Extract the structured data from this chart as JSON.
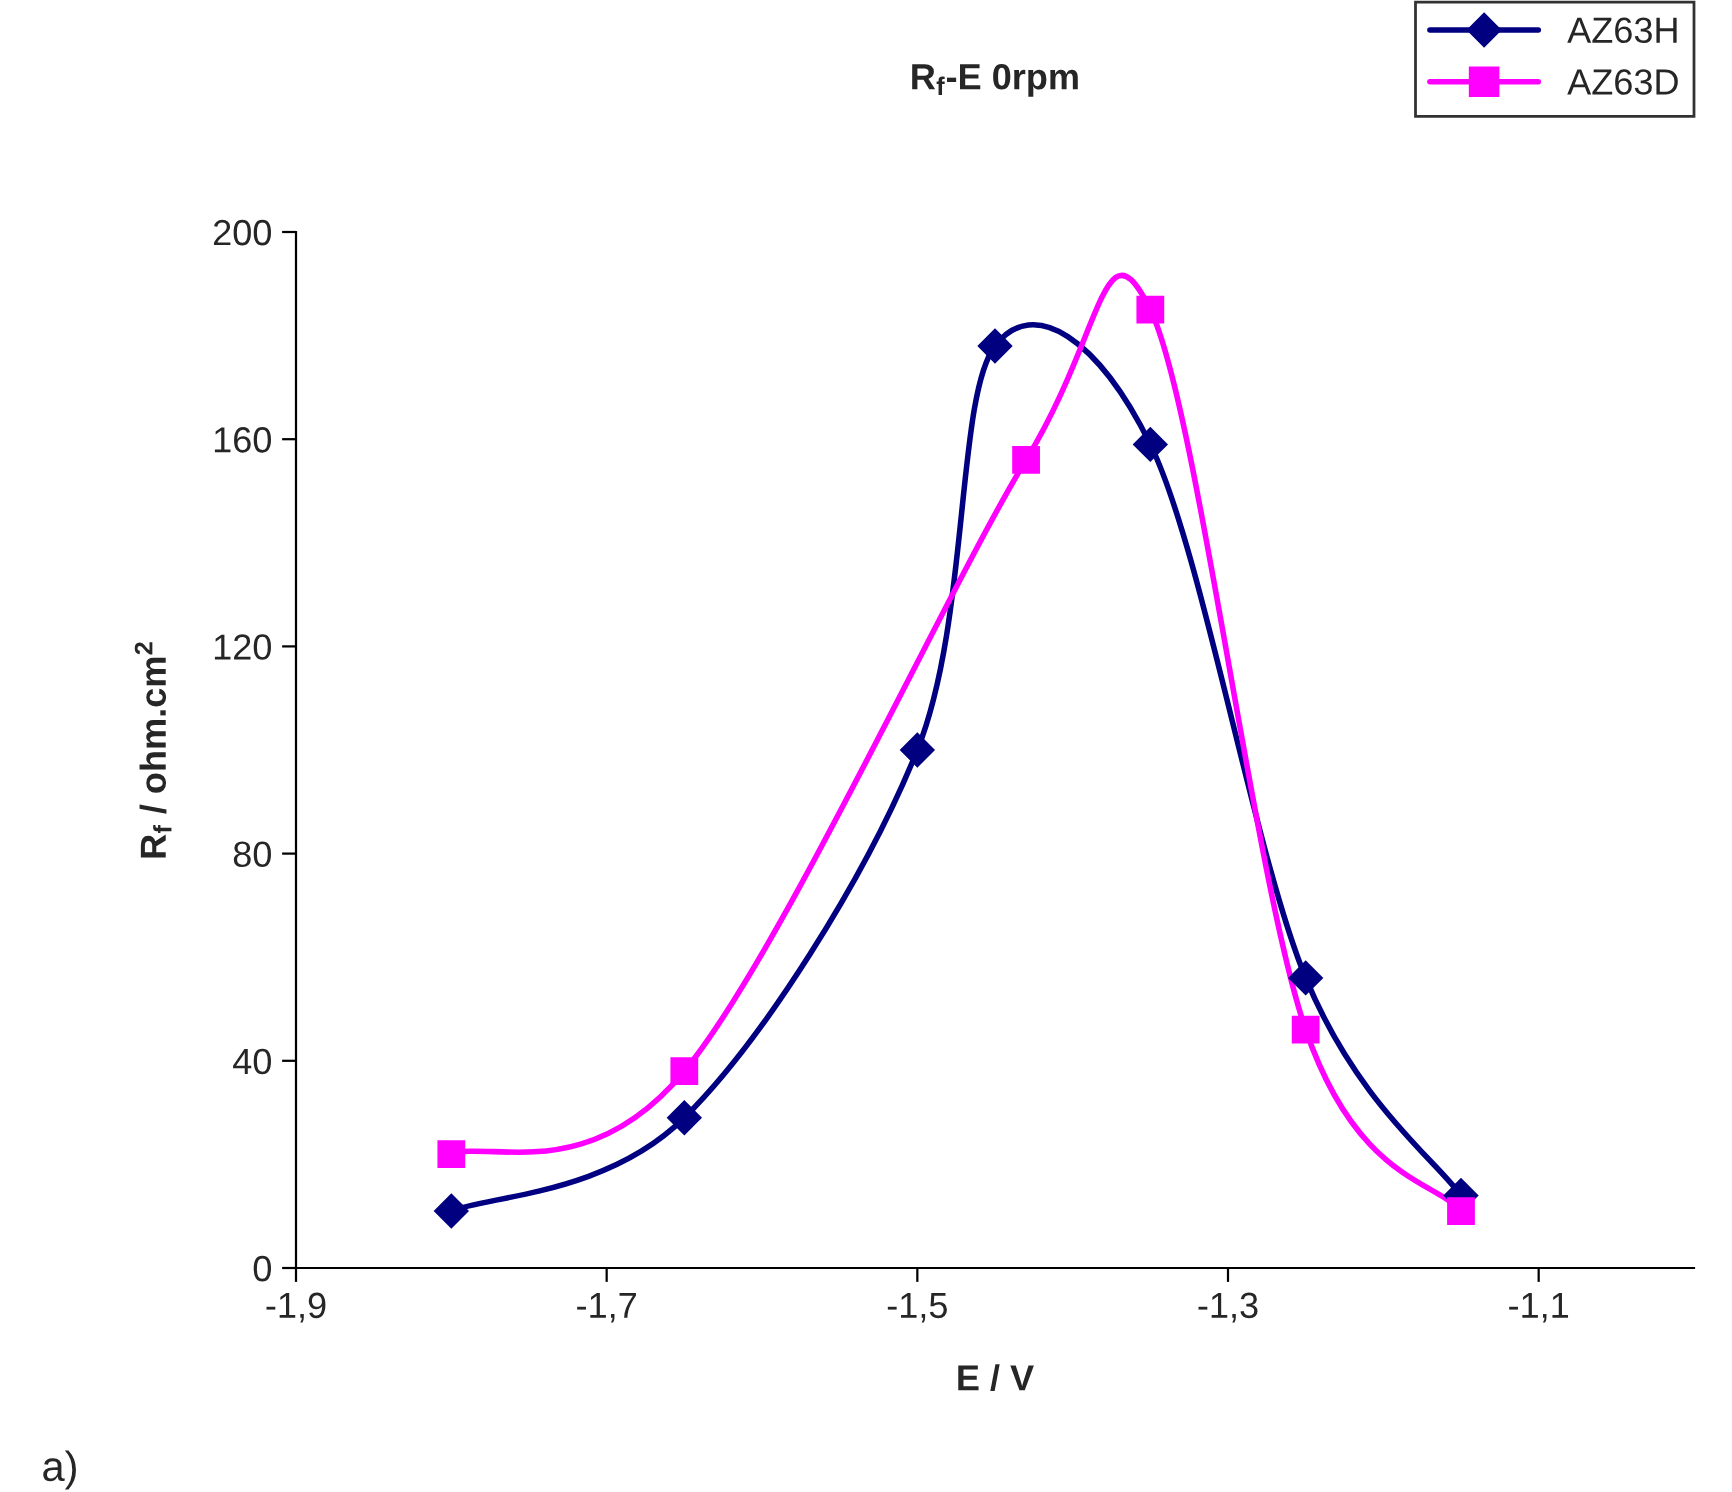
{
  "chart_data": {
    "type": "line",
    "title": "R$_{f}$-E 0rpm",
    "xlabel": "E / V",
    "ylabel": "R$_{f}$ / ohm.cm$^{2}$",
    "series": [
      {
        "name": "AZ63H",
        "color": "#000080",
        "marker": "diamond",
        "x": [
          -1.8,
          -1.65,
          -1.5,
          -1.45,
          -1.35,
          -1.25,
          -1.15
        ],
        "values": [
          11,
          29,
          100,
          178,
          159,
          56,
          14
        ]
      },
      {
        "name": "AZ63D",
        "color": "#ff00ff",
        "marker": "square",
        "x": [
          -1.8,
          -1.65,
          -1.43,
          -1.35,
          -1.25,
          -1.15
        ],
        "values": [
          22,
          38,
          156,
          185,
          46,
          11
        ]
      }
    ],
    "xlim": [
      -1.9,
      -1.0
    ],
    "xticks": [
      {
        "value": -1.9,
        "label": "-1,9"
      },
      {
        "value": -1.7,
        "label": "-1,7"
      },
      {
        "value": -1.5,
        "label": "-1,5"
      },
      {
        "value": -1.3,
        "label": "-1,3"
      },
      {
        "value": -1.1,
        "label": "-1,1"
      }
    ],
    "ylim": [
      0,
      200
    ],
    "yticks": [
      0,
      40,
      80,
      120,
      160,
      200
    ],
    "grid": false,
    "legend": "top right",
    "line_style": "solid",
    "annotations": [
      "a)"
    ]
  }
}
